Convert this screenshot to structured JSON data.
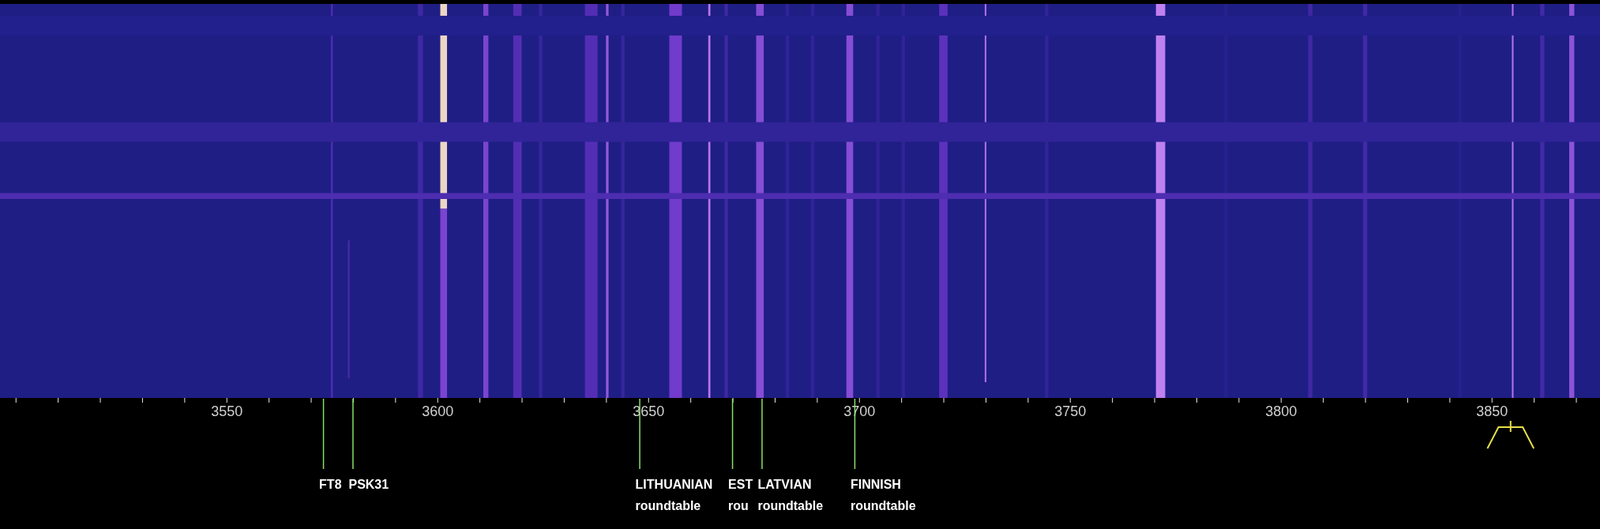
{
  "chart_data": {
    "type": "waterfall",
    "xlim": [
      3496.3,
      3875.7
    ],
    "xticks": [
      3550,
      3600,
      3650,
      3700,
      3750,
      3800,
      3850
    ],
    "xticks_minor": [
      3500,
      3510,
      3520,
      3530,
      3540,
      3550,
      3560,
      3570,
      3580,
      3590,
      3600,
      3610,
      3620,
      3630,
      3640,
      3650,
      3660,
      3670,
      3680,
      3690,
      3700,
      3710,
      3720,
      3730,
      3740,
      3750,
      3760,
      3770,
      3780,
      3790,
      3800,
      3810,
      3820,
      3830,
      3840,
      3850,
      3860,
      3870
    ],
    "ylim": [
      0,
      100
    ],
    "tick_labels": "x",
    "intensity_range": [
      0,
      100
    ],
    "noise_floor": 22,
    "bands": [
      {
        "rows": [
          3,
          8
        ],
        "intensity": 25
      },
      {
        "rows": [
          30,
          35
        ],
        "intensity": 30
      },
      {
        "rows": [
          48,
          49.5
        ],
        "intensity": 40
      }
    ],
    "signals": [
      {
        "freq": 3575,
        "width": 0.4,
        "intensity": 42,
        "rows": [
          0,
          100
        ]
      },
      {
        "freq": 3579,
        "width": 0.4,
        "intensity": 38,
        "rows": [
          60,
          95
        ]
      },
      {
        "freq": 3596,
        "width": 1.2,
        "intensity": 35,
        "rows": [
          0,
          100
        ]
      },
      {
        "freq": 3601.5,
        "width": 1.6,
        "intensity": 92,
        "rows": [
          0,
          52
        ]
      },
      {
        "freq": 3601.5,
        "width": 1.6,
        "intensity": 55,
        "rows": [
          52,
          100
        ]
      },
      {
        "freq": 3611.5,
        "width": 1.2,
        "intensity": 55,
        "rows": [
          0,
          100
        ]
      },
      {
        "freq": 3619,
        "width": 2,
        "intensity": 42,
        "rows": [
          0,
          100
        ]
      },
      {
        "freq": 3624.5,
        "width": 0.8,
        "intensity": 32,
        "rows": [
          0,
          100
        ]
      },
      {
        "freq": 3636.5,
        "width": 3,
        "intensity": 42,
        "rows": [
          0,
          100
        ]
      },
      {
        "freq": 3640.3,
        "width": 0.6,
        "intensity": 62,
        "rows": [
          0,
          100
        ]
      },
      {
        "freq": 3644,
        "width": 0.8,
        "intensity": 32,
        "rows": [
          0,
          100
        ]
      },
      {
        "freq": 3656.5,
        "width": 3,
        "intensity": 52,
        "rows": [
          0,
          100
        ]
      },
      {
        "freq": 3664.5,
        "width": 0.5,
        "intensity": 72,
        "rows": [
          0,
          100
        ]
      },
      {
        "freq": 3668.5,
        "width": 0.8,
        "intensity": 35,
        "rows": [
          0,
          100
        ]
      },
      {
        "freq": 3676.5,
        "width": 1.8,
        "intensity": 58,
        "rows": [
          0,
          100
        ]
      },
      {
        "freq": 3683,
        "width": 0.8,
        "intensity": 30,
        "rows": [
          0,
          100
        ]
      },
      {
        "freq": 3689,
        "width": 0.8,
        "intensity": 30,
        "rows": [
          0,
          100
        ]
      },
      {
        "freq": 3697.8,
        "width": 1.6,
        "intensity": 58,
        "rows": [
          0,
          100
        ]
      },
      {
        "freq": 3704.5,
        "width": 0.8,
        "intensity": 30,
        "rows": [
          0,
          100
        ]
      },
      {
        "freq": 3710.5,
        "width": 0.8,
        "intensity": 30,
        "rows": [
          0,
          100
        ]
      },
      {
        "freq": 3720,
        "width": 2,
        "intensity": 45,
        "rows": [
          0,
          100
        ]
      },
      {
        "freq": 3730,
        "width": 0.4,
        "intensity": 68,
        "rows": [
          0,
          96
        ]
      },
      {
        "freq": 3744.5,
        "width": 0.8,
        "intensity": 30,
        "rows": [
          0,
          100
        ]
      },
      {
        "freq": 3771.5,
        "width": 2.2,
        "intensity": 75,
        "rows": [
          0,
          100
        ]
      },
      {
        "freq": 3787,
        "width": 0.8,
        "intensity": 26,
        "rows": [
          0,
          100
        ]
      },
      {
        "freq": 3807,
        "width": 1,
        "intensity": 35,
        "rows": [
          0,
          100
        ]
      },
      {
        "freq": 3820,
        "width": 1,
        "intensity": 36,
        "rows": [
          0,
          100
        ]
      },
      {
        "freq": 3842.5,
        "width": 0.8,
        "intensity": 26,
        "rows": [
          0,
          100
        ]
      },
      {
        "freq": 3855,
        "width": 0.4,
        "intensity": 70,
        "rows": [
          0,
          100
        ]
      },
      {
        "freq": 3862,
        "width": 1,
        "intensity": 36,
        "rows": [
          0,
          100
        ]
      },
      {
        "freq": 3869,
        "width": 1.2,
        "intensity": 60,
        "rows": [
          0,
          100
        ]
      }
    ],
    "markers": [
      {
        "freq": 3573,
        "lines": [
          "FT8"
        ]
      },
      {
        "freq": 3580,
        "lines": [
          "PSK31"
        ]
      },
      {
        "freq": 3648,
        "lines": [
          "LITHUANIAN",
          "roundtable"
        ]
      },
      {
        "freq": 3670,
        "lines": [
          "EST",
          "rou"
        ]
      },
      {
        "freq": 3677,
        "lines": [
          "LATVIAN",
          "roundtable"
        ]
      },
      {
        "freq": 3699,
        "lines": [
          "FINNISH",
          "roundtable"
        ]
      }
    ],
    "passband": [
      3849,
      3860
    ]
  }
}
